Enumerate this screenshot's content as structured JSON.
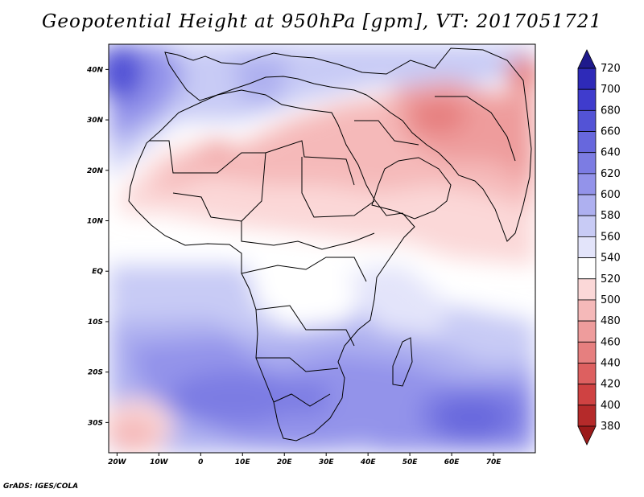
{
  "title": "Geopotential Height at 950hPa [gpm], VT: 2017051721",
  "credit": "GrADS: IGES/COLA",
  "map": {
    "lon_range": [
      -22,
      80
    ],
    "lat_range": [
      -36,
      45
    ],
    "lat_labels": [
      "40N",
      "30N",
      "20N",
      "10N",
      "EQ",
      "10S",
      "20S",
      "30S"
    ],
    "lat_values": [
      40,
      30,
      20,
      10,
      0,
      -10,
      -20,
      -30
    ],
    "lon_labels": [
      "20W",
      "10W",
      "0",
      "10E",
      "20E",
      "30E",
      "40E",
      "50E",
      "60E",
      "70E"
    ],
    "lon_values": [
      -20,
      -10,
      0,
      10,
      20,
      30,
      40,
      50,
      60,
      70
    ]
  },
  "colorbar": {
    "labels": [
      "720",
      "700",
      "680",
      "660",
      "640",
      "620",
      "600",
      "580",
      "560",
      "540",
      "520",
      "500",
      "480",
      "460",
      "440",
      "420",
      "400",
      "380"
    ],
    "colors": [
      "#1f1a8c",
      "#2e2ab8",
      "#3f3ccd",
      "#5353d6",
      "#6767dd",
      "#7c7ce3",
      "#9393ea",
      "#aeb0f0",
      "#c8cbf5",
      "#e3e4fa",
      "#ffffff",
      "#fbd8d8",
      "#f5b9b9",
      "#ee9c9c",
      "#e67f7f",
      "#dd6060",
      "#cf4242",
      "#b52a2a",
      "#9b1a1a"
    ]
  }
}
